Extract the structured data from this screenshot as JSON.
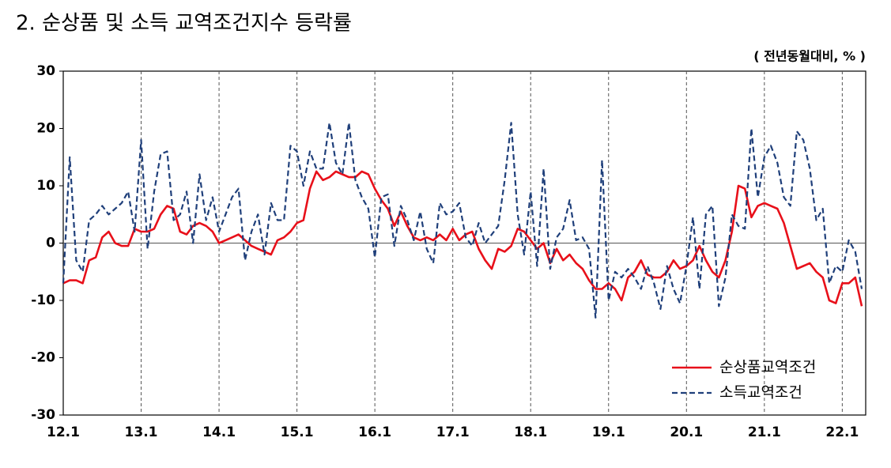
{
  "chart_data": {
    "type": "line",
    "title": "2. 순상품 및 소득 교역조건지수 등락률",
    "unit_label": "( 전년동월대비, % )",
    "categories": [
      "12.1",
      null,
      null,
      null,
      null,
      null,
      null,
      null,
      null,
      null,
      null,
      null,
      "13.1",
      null,
      null,
      null,
      null,
      null,
      null,
      null,
      null,
      null,
      null,
      null,
      "14.1",
      null,
      null,
      null,
      null,
      null,
      null,
      null,
      null,
      null,
      null,
      null,
      "15.1",
      null,
      null,
      null,
      null,
      null,
      null,
      null,
      null,
      null,
      null,
      null,
      "16.1",
      null,
      null,
      null,
      null,
      null,
      null,
      null,
      null,
      null,
      null,
      null,
      "17.1",
      null,
      null,
      null,
      null,
      null,
      null,
      null,
      null,
      null,
      null,
      null,
      "18.1",
      null,
      null,
      null,
      null,
      null,
      null,
      null,
      null,
      null,
      null,
      null,
      "19.1",
      null,
      null,
      null,
      null,
      null,
      null,
      null,
      null,
      null,
      null,
      null,
      "20.1",
      null,
      null,
      null,
      null,
      null,
      null,
      null,
      null,
      null,
      null,
      null,
      "21.1",
      null,
      null,
      null,
      null,
      null,
      null,
      null,
      null,
      null,
      null,
      null,
      "22.1",
      null,
      null,
      null
    ],
    "series": [
      {
        "name": "순상품교역조건",
        "color": "#e8101a",
        "dash": false,
        "values": [
          -7,
          -6.5,
          -6.5,
          -7,
          -3,
          -2.5,
          1,
          2,
          0,
          -0.5,
          -0.5,
          2.5,
          2,
          2,
          2.5,
          5,
          6.5,
          6,
          2,
          1.5,
          3,
          3.5,
          3,
          2,
          0,
          0.5,
          1,
          1.5,
          0.5,
          -0.5,
          -1,
          -1.5,
          -2,
          0.5,
          1,
          2,
          3.5,
          4,
          9.5,
          12.5,
          11,
          11.5,
          12.5,
          12,
          11.5,
          11.5,
          12.5,
          12,
          9.5,
          7.5,
          6,
          3,
          5.5,
          3,
          1,
          0.5,
          1,
          0.5,
          1.5,
          0.5,
          2.5,
          0.5,
          1.5,
          2,
          -1,
          -3,
          -4.5,
          -1,
          -1.5,
          -0.5,
          2.5,
          2,
          0.5,
          -1,
          0,
          -3.5,
          -1,
          -3,
          -2,
          -3.5,
          -4.5,
          -6.5,
          -8,
          -8,
          -7,
          -8,
          -10,
          -6,
          -5,
          -3,
          -5.5,
          -6,
          -6,
          -5,
          -3,
          -4.5,
          -4,
          -3,
          -0.5,
          -3,
          -5,
          -6,
          -3,
          2,
          10,
          9.5,
          4.5,
          6.5,
          7,
          6.5,
          6,
          3.5,
          -0.5,
          -4.5,
          -4,
          -3.5,
          -5,
          -6,
          -10,
          -10.5,
          -7,
          -7,
          -6,
          -11
        ]
      },
      {
        "name": "소득교역조건",
        "color": "#1f3f7a",
        "dash": true,
        "values": [
          -7,
          15,
          -3,
          -5,
          4,
          5,
          6.5,
          5,
          6,
          7,
          9,
          2,
          18,
          -1,
          9,
          15.5,
          16,
          4,
          5,
          9,
          0,
          12,
          4,
          8,
          2,
          5,
          8,
          9.5,
          -3,
          2,
          5,
          -2,
          7,
          4,
          4,
          17,
          16,
          10,
          16,
          13,
          13,
          21,
          14,
          12,
          21,
          11,
          8,
          6,
          -2.5,
          8,
          8.5,
          -0.5,
          6.5,
          4,
          0.5,
          5.5,
          -1,
          -3.5,
          7,
          5,
          5.5,
          7,
          1,
          -0.5,
          3.5,
          0,
          1.5,
          3,
          11,
          21,
          5,
          -2,
          9,
          -4,
          13,
          -4.5,
          1,
          2.5,
          7.5,
          0.5,
          1,
          -1,
          -13,
          14.5,
          -10,
          -5,
          -6,
          -4.5,
          -6,
          -8,
          -4,
          -7,
          -11.5,
          -4,
          -8,
          -10.5,
          -4,
          4.5,
          -8,
          5,
          6.5,
          -11,
          -6,
          5,
          3,
          2.5,
          20,
          8,
          15,
          17,
          14,
          8,
          6.5,
          19.5,
          18,
          13,
          4,
          6,
          -7,
          -4,
          -5,
          0.5,
          -1.5,
          -8
        ]
      }
    ],
    "ylim": [
      -30,
      30
    ],
    "yticks": [
      -30,
      -20,
      -10,
      0,
      10,
      20,
      30
    ],
    "legend": "lower right"
  }
}
